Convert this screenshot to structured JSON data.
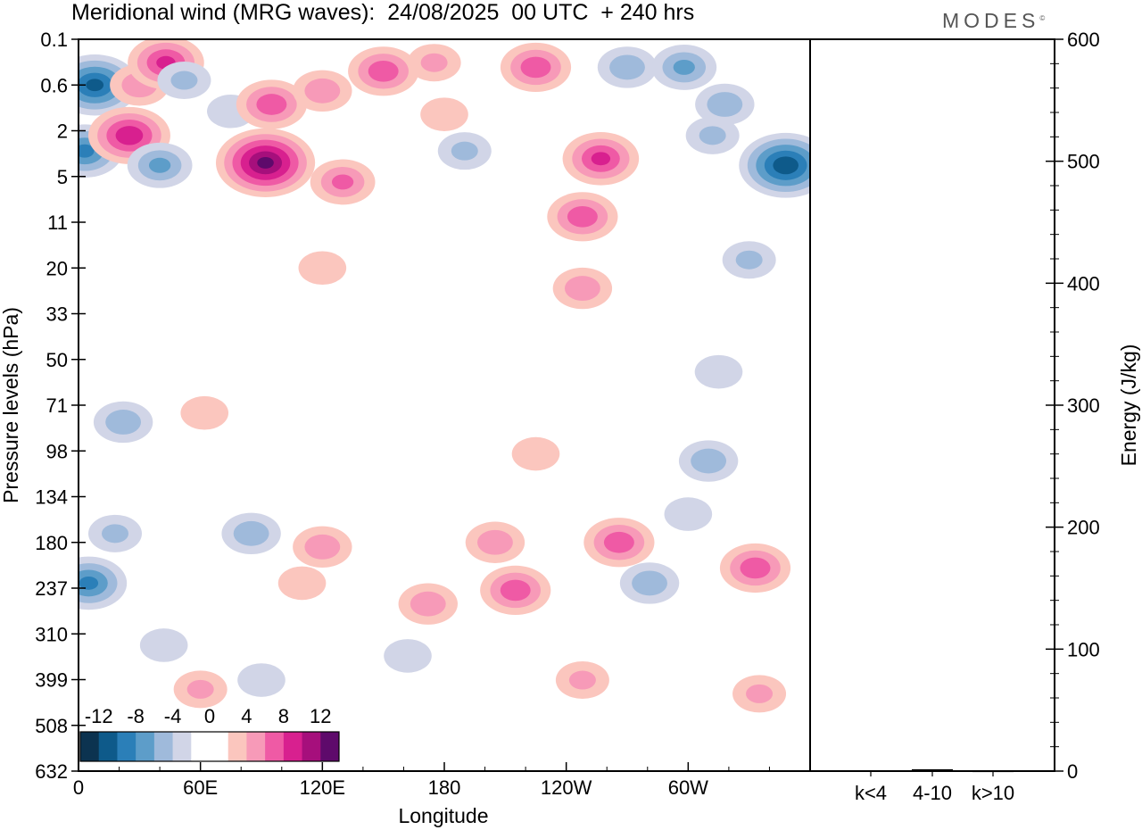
{
  "header": {
    "title": "Meridional wind (MRG waves):  24/08/2025  00 UTC  + 240 hrs",
    "logo": "MODES",
    "logo_mark": "©"
  },
  "chart_data": [
    {
      "type": "heatmap",
      "title": "Meridional wind (MRG waves):  24/08/2025  00 UTC  + 240 hrs",
      "xlabel": "Longitude",
      "ylabel": "Pressure levels (hPa)",
      "x_ticks": [
        "0",
        "60E",
        "120E",
        "180",
        "120W",
        "60W"
      ],
      "y_ticks": [
        "0.1",
        "0.6",
        "2",
        "5",
        "11",
        "20",
        "33",
        "50",
        "71",
        "98",
        "134",
        "180",
        "237",
        "310",
        "399",
        "508",
        "632"
      ],
      "colorbar": {
        "labels": [
          "-12",
          "-8",
          "-4",
          "0",
          "4",
          "8",
          "12"
        ],
        "colors": [
          "#0c3350",
          "#0e5a8a",
          "#2b7fb8",
          "#5d9dc9",
          "#9fbadb",
          "#d1d5e7",
          "#ffffff",
          "#ffffff",
          "#fbc6be",
          "#f79ab8",
          "#ef5aa5",
          "#d8208f",
          "#a60f7c",
          "#5e0a6b"
        ],
        "placement": "bottom-left"
      },
      "features": [
        {
          "lon": 8,
          "p": 0.6,
          "v": -11
        },
        {
          "lon": 3,
          "p": 3,
          "v": -9
        },
        {
          "lon": 30,
          "p": 0.6,
          "v": 6
        },
        {
          "lon": 43,
          "p": 0.25,
          "v": 9
        },
        {
          "lon": 52,
          "p": 0.5,
          "v": -5
        },
        {
          "lon": 25,
          "p": 2.2,
          "v": 10
        },
        {
          "lon": 40,
          "p": 4,
          "v": -7
        },
        {
          "lon": 75,
          "p": 1.2,
          "v": -4
        },
        {
          "lon": 95,
          "p": 1.0,
          "v": 8
        },
        {
          "lon": 92,
          "p": 3.8,
          "v": 13
        },
        {
          "lon": 130,
          "p": 5.5,
          "v": 7
        },
        {
          "lon": 120,
          "p": 0.7,
          "v": 6
        },
        {
          "lon": 150,
          "p": 0.35,
          "v": 8
        },
        {
          "lon": 175,
          "p": 0.25,
          "v": 5
        },
        {
          "lon": 180,
          "p": 1.3,
          "v": 4
        },
        {
          "lon": 225,
          "p": 0.3,
          "v": 8
        },
        {
          "lon": 190,
          "p": 3,
          "v": -5
        },
        {
          "lon": 257,
          "p": 3.5,
          "v": 9
        },
        {
          "lon": 248,
          "p": 10,
          "v": 8
        },
        {
          "lon": 248,
          "p": 25,
          "v": 6
        },
        {
          "lon": 270,
          "p": 0.3,
          "v": -6
        },
        {
          "lon": 298,
          "p": 0.3,
          "v": -7
        },
        {
          "lon": 318,
          "p": 1.0,
          "v": -6
        },
        {
          "lon": 312,
          "p": 2.2,
          "v": -5
        },
        {
          "lon": 348,
          "p": 4,
          "v": -12
        },
        {
          "lon": 330,
          "p": 18,
          "v": -5
        },
        {
          "lon": 120,
          "p": 20,
          "v": 4
        },
        {
          "lon": 22,
          "p": 80,
          "v": -6
        },
        {
          "lon": 62,
          "p": 75,
          "v": 4
        },
        {
          "lon": 310,
          "p": 105,
          "v": -6
        },
        {
          "lon": 315,
          "p": 55,
          "v": -4
        },
        {
          "lon": 5,
          "p": 230,
          "v": -9
        },
        {
          "lon": 18,
          "p": 170,
          "v": -5
        },
        {
          "lon": 85,
          "p": 170,
          "v": -6
        },
        {
          "lon": 110,
          "p": 230,
          "v": 4
        },
        {
          "lon": 120,
          "p": 185,
          "v": 6
        },
        {
          "lon": 172,
          "p": 260,
          "v": 6
        },
        {
          "lon": 205,
          "p": 180,
          "v": 6
        },
        {
          "lon": 215,
          "p": 240,
          "v": 8
        },
        {
          "lon": 225,
          "p": 100,
          "v": 4
        },
        {
          "lon": 266,
          "p": 180,
          "v": 8
        },
        {
          "lon": 281,
          "p": 230,
          "v": -6
        },
        {
          "lon": 300,
          "p": 150,
          "v": -4
        },
        {
          "lon": 333,
          "p": 210,
          "v": 8
        },
        {
          "lon": 335,
          "p": 430,
          "v": 5
        },
        {
          "lon": 248,
          "p": 400,
          "v": 5
        },
        {
          "lon": 42,
          "p": 330,
          "v": -4
        },
        {
          "lon": 162,
          "p": 350,
          "v": -4
        },
        {
          "lon": 60,
          "p": 420,
          "v": 5
        },
        {
          "lon": 90,
          "p": 400,
          "v": -4
        }
      ]
    },
    {
      "type": "bar",
      "title": "",
      "xlabel": "",
      "ylabel": "Energy (J/kg)",
      "categories": [
        "k<4",
        "4-10",
        "k>10"
      ],
      "values": [
        0.5,
        1.5,
        0.3
      ],
      "ylim": [
        0,
        600
      ],
      "y_ticks": [
        "0",
        "100",
        "200",
        "300",
        "400",
        "500",
        "600"
      ]
    }
  ]
}
